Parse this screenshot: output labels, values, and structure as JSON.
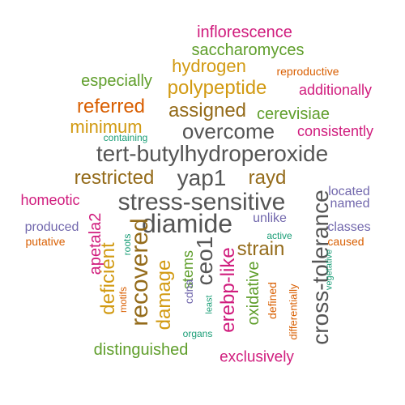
{
  "colors": {
    "gray": "#555555",
    "brown": "#946b1a",
    "gold": "#d29a12",
    "green": "#5f9e2b",
    "magenta": "#d01c7d",
    "purple": "#7268ad",
    "orange": "#d95f02",
    "teal": "#1b9e77"
  },
  "words": [
    {
      "text": "inflorescence",
      "color": "magenta",
      "orientation": "horizontal"
    },
    {
      "text": "saccharomyces",
      "color": "green",
      "orientation": "horizontal"
    },
    {
      "text": "hydrogen",
      "color": "gold",
      "orientation": "horizontal"
    },
    {
      "text": "reproductive",
      "color": "orange",
      "orientation": "horizontal"
    },
    {
      "text": "especially",
      "color": "green",
      "orientation": "horizontal"
    },
    {
      "text": "polypeptide",
      "color": "gold",
      "orientation": "horizontal"
    },
    {
      "text": "additionally",
      "color": "magenta",
      "orientation": "horizontal"
    },
    {
      "text": "referred",
      "color": "orange",
      "orientation": "horizontal"
    },
    {
      "text": "assigned",
      "color": "brown",
      "orientation": "horizontal"
    },
    {
      "text": "cerevisiae",
      "color": "green",
      "orientation": "horizontal"
    },
    {
      "text": "minimum",
      "color": "gold",
      "orientation": "horizontal"
    },
    {
      "text": "overcome",
      "color": "gray",
      "orientation": "horizontal"
    },
    {
      "text": "consistently",
      "color": "magenta",
      "orientation": "horizontal"
    },
    {
      "text": "containing",
      "color": "teal",
      "orientation": "horizontal"
    },
    {
      "text": "tert-butylhydroperoxide",
      "color": "gray",
      "orientation": "horizontal"
    },
    {
      "text": "restricted",
      "color": "brown",
      "orientation": "horizontal"
    },
    {
      "text": "yap1",
      "color": "gray",
      "orientation": "horizontal"
    },
    {
      "text": "rayd",
      "color": "brown",
      "orientation": "horizontal"
    },
    {
      "text": "cross-tolerance",
      "color": "gray",
      "orientation": "vertical"
    },
    {
      "text": "located",
      "color": "purple",
      "orientation": "horizontal"
    },
    {
      "text": "homeotic",
      "color": "magenta",
      "orientation": "horizontal"
    },
    {
      "text": "stress-sensitive",
      "color": "gray",
      "orientation": "horizontal"
    },
    {
      "text": "named",
      "color": "purple",
      "orientation": "horizontal"
    },
    {
      "text": "diamide",
      "color": "gray",
      "orientation": "horizontal"
    },
    {
      "text": "unlike",
      "color": "purple",
      "orientation": "horizontal"
    },
    {
      "text": "produced",
      "color": "purple",
      "orientation": "horizontal"
    },
    {
      "text": "classes",
      "color": "purple",
      "orientation": "horizontal"
    },
    {
      "text": "apetala2",
      "color": "magenta",
      "orientation": "vertical"
    },
    {
      "text": "active",
      "color": "teal",
      "orientation": "horizontal"
    },
    {
      "text": "putative",
      "color": "orange",
      "orientation": "horizontal"
    },
    {
      "text": "caused",
      "color": "orange",
      "orientation": "horizontal"
    },
    {
      "text": "strain",
      "color": "brown",
      "orientation": "horizontal"
    },
    {
      "text": "roots",
      "color": "teal",
      "orientation": "vertical"
    },
    {
      "text": "recovered",
      "color": "brown",
      "orientation": "vertical"
    },
    {
      "text": "ceo1",
      "color": "gray",
      "orientation": "vertical"
    },
    {
      "text": "vegetative",
      "color": "teal",
      "orientation": "vertical"
    },
    {
      "text": "deficient",
      "color": "gold",
      "orientation": "vertical"
    },
    {
      "text": "stems",
      "color": "green",
      "orientation": "vertical"
    },
    {
      "text": "cdna",
      "color": "purple",
      "orientation": "vertical"
    },
    {
      "text": "motifs",
      "color": "orange",
      "orientation": "vertical"
    },
    {
      "text": "damage",
      "color": "gold",
      "orientation": "vertical"
    },
    {
      "text": "erebp-like",
      "color": "magenta",
      "orientation": "vertical"
    },
    {
      "text": "oxidative",
      "color": "green",
      "orientation": "vertical"
    },
    {
      "text": "defined",
      "color": "orange",
      "orientation": "vertical"
    },
    {
      "text": "differentially",
      "color": "orange",
      "orientation": "vertical"
    },
    {
      "text": "least",
      "color": "teal",
      "orientation": "vertical"
    },
    {
      "text": "organs",
      "color": "teal",
      "orientation": "horizontal"
    },
    {
      "text": "distinguished",
      "color": "green",
      "orientation": "horizontal"
    },
    {
      "text": "exclusively",
      "color": "magenta",
      "orientation": "horizontal"
    }
  ]
}
